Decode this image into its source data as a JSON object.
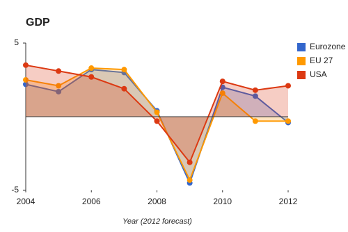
{
  "chart_data": {
    "type": "area",
    "title": "GDP",
    "x_label": "Year (2012 forecast)",
    "x": [
      2004,
      2005,
      2006,
      2007,
      2008,
      2009,
      2010,
      2011,
      2012
    ],
    "xlim": [
      2004,
      2012
    ],
    "xticks": [
      2004,
      2006,
      2008,
      2010,
      2012
    ],
    "ylim": [
      -5,
      5
    ],
    "yticks": [
      -5,
      5
    ],
    "legend": "right",
    "series": [
      {
        "name": "Eurozone",
        "color": "#3366cc",
        "values": [
          2.2,
          1.7,
          3.2,
          3.0,
          0.4,
          -4.5,
          2.0,
          1.4,
          -0.4
        ]
      },
      {
        "name": "EU 27",
        "color": "#ff9900",
        "values": [
          2.5,
          2.1,
          3.3,
          3.2,
          0.3,
          -4.3,
          1.6,
          -0.3,
          -0.3
        ]
      },
      {
        "name": "USA",
        "color": "#dc3912",
        "values": [
          3.5,
          3.1,
          2.7,
          1.9,
          -0.3,
          -3.1,
          2.4,
          1.8,
          2.1
        ]
      }
    ]
  }
}
